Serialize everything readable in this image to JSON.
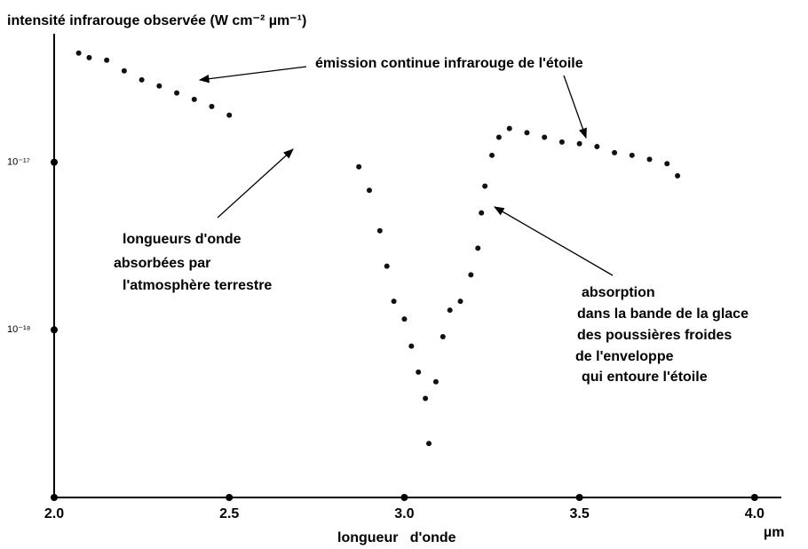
{
  "chart_data": {
    "type": "scatter",
    "title": "intensité infrarouge observée (W cm⁻² µm⁻¹)",
    "x_label": "longueur   d'onde",
    "x_unit": "µm",
    "y_scale": "log",
    "color": "#111111",
    "x": [
      2.07,
      2.1,
      2.15,
      2.2,
      2.25,
      2.3,
      2.35,
      2.4,
      2.45,
      2.5,
      2.87,
      2.9,
      2.93,
      2.95,
      2.97,
      3.0,
      3.02,
      3.04,
      3.06,
      3.07,
      3.09,
      3.11,
      3.13,
      3.16,
      3.19,
      3.21,
      3.22,
      3.23,
      3.25,
      3.27,
      3.3,
      3.35,
      3.4,
      3.45,
      3.5,
      3.55,
      3.6,
      3.65,
      3.7,
      3.75,
      3.78
    ],
    "values": [
      4.48e-17,
      4.21e-17,
      4.06e-17,
      3.51e-17,
      3.1e-17,
      2.85e-17,
      2.59e-17,
      2.37e-17,
      2.15e-17,
      1.91e-17,
      9.4e-18,
      6.8e-18,
      3.9e-18,
      2.4e-18,
      1.48e-18,
      1.16e-18,
      8e-19,
      5.6e-19,
      3.9e-19,
      2.1e-19,
      4.9e-19,
      9.1e-19,
      1.31e-18,
      1.48e-18,
      2.13e-18,
      3.07e-18,
      4.99e-18,
      7.2e-18,
      1.1e-17,
      1.41e-17,
      1.59e-17,
      1.5e-17,
      1.41e-17,
      1.32e-17,
      1.29e-17,
      1.24e-17,
      1.14e-17,
      1.1e-17,
      1.04e-17,
      9.8e-18,
      8.3e-18
    ],
    "xlim": [
      2,
      4.15
    ],
    "ylim": [
      1e-19,
      5.7e-17
    ],
    "xticks": [
      {
        "value": 2,
        "label": "2.0"
      },
      2.5,
      {
        "value": 3,
        "label": "3.0"
      },
      3.5,
      {
        "value": 4,
        "label": "4.0"
      }
    ],
    "yticks": [
      {
        "value": 1e-17,
        "label": "10⁻¹⁷"
      },
      {
        "value": 1e-18,
        "label": "10⁻¹⁸"
      }
    ],
    "annotations": [
      [
        "émission continue infrarouge de l'étoile"
      ],
      [
        "longueurs d'onde",
        "absorbées par",
        "l'atmosphère terrestre"
      ],
      [
        "absorption",
        "dans la bande de la glace",
        "des poussières froides",
        "de l'enveloppe",
        "qui entoure l'étoile"
      ]
    ]
  }
}
